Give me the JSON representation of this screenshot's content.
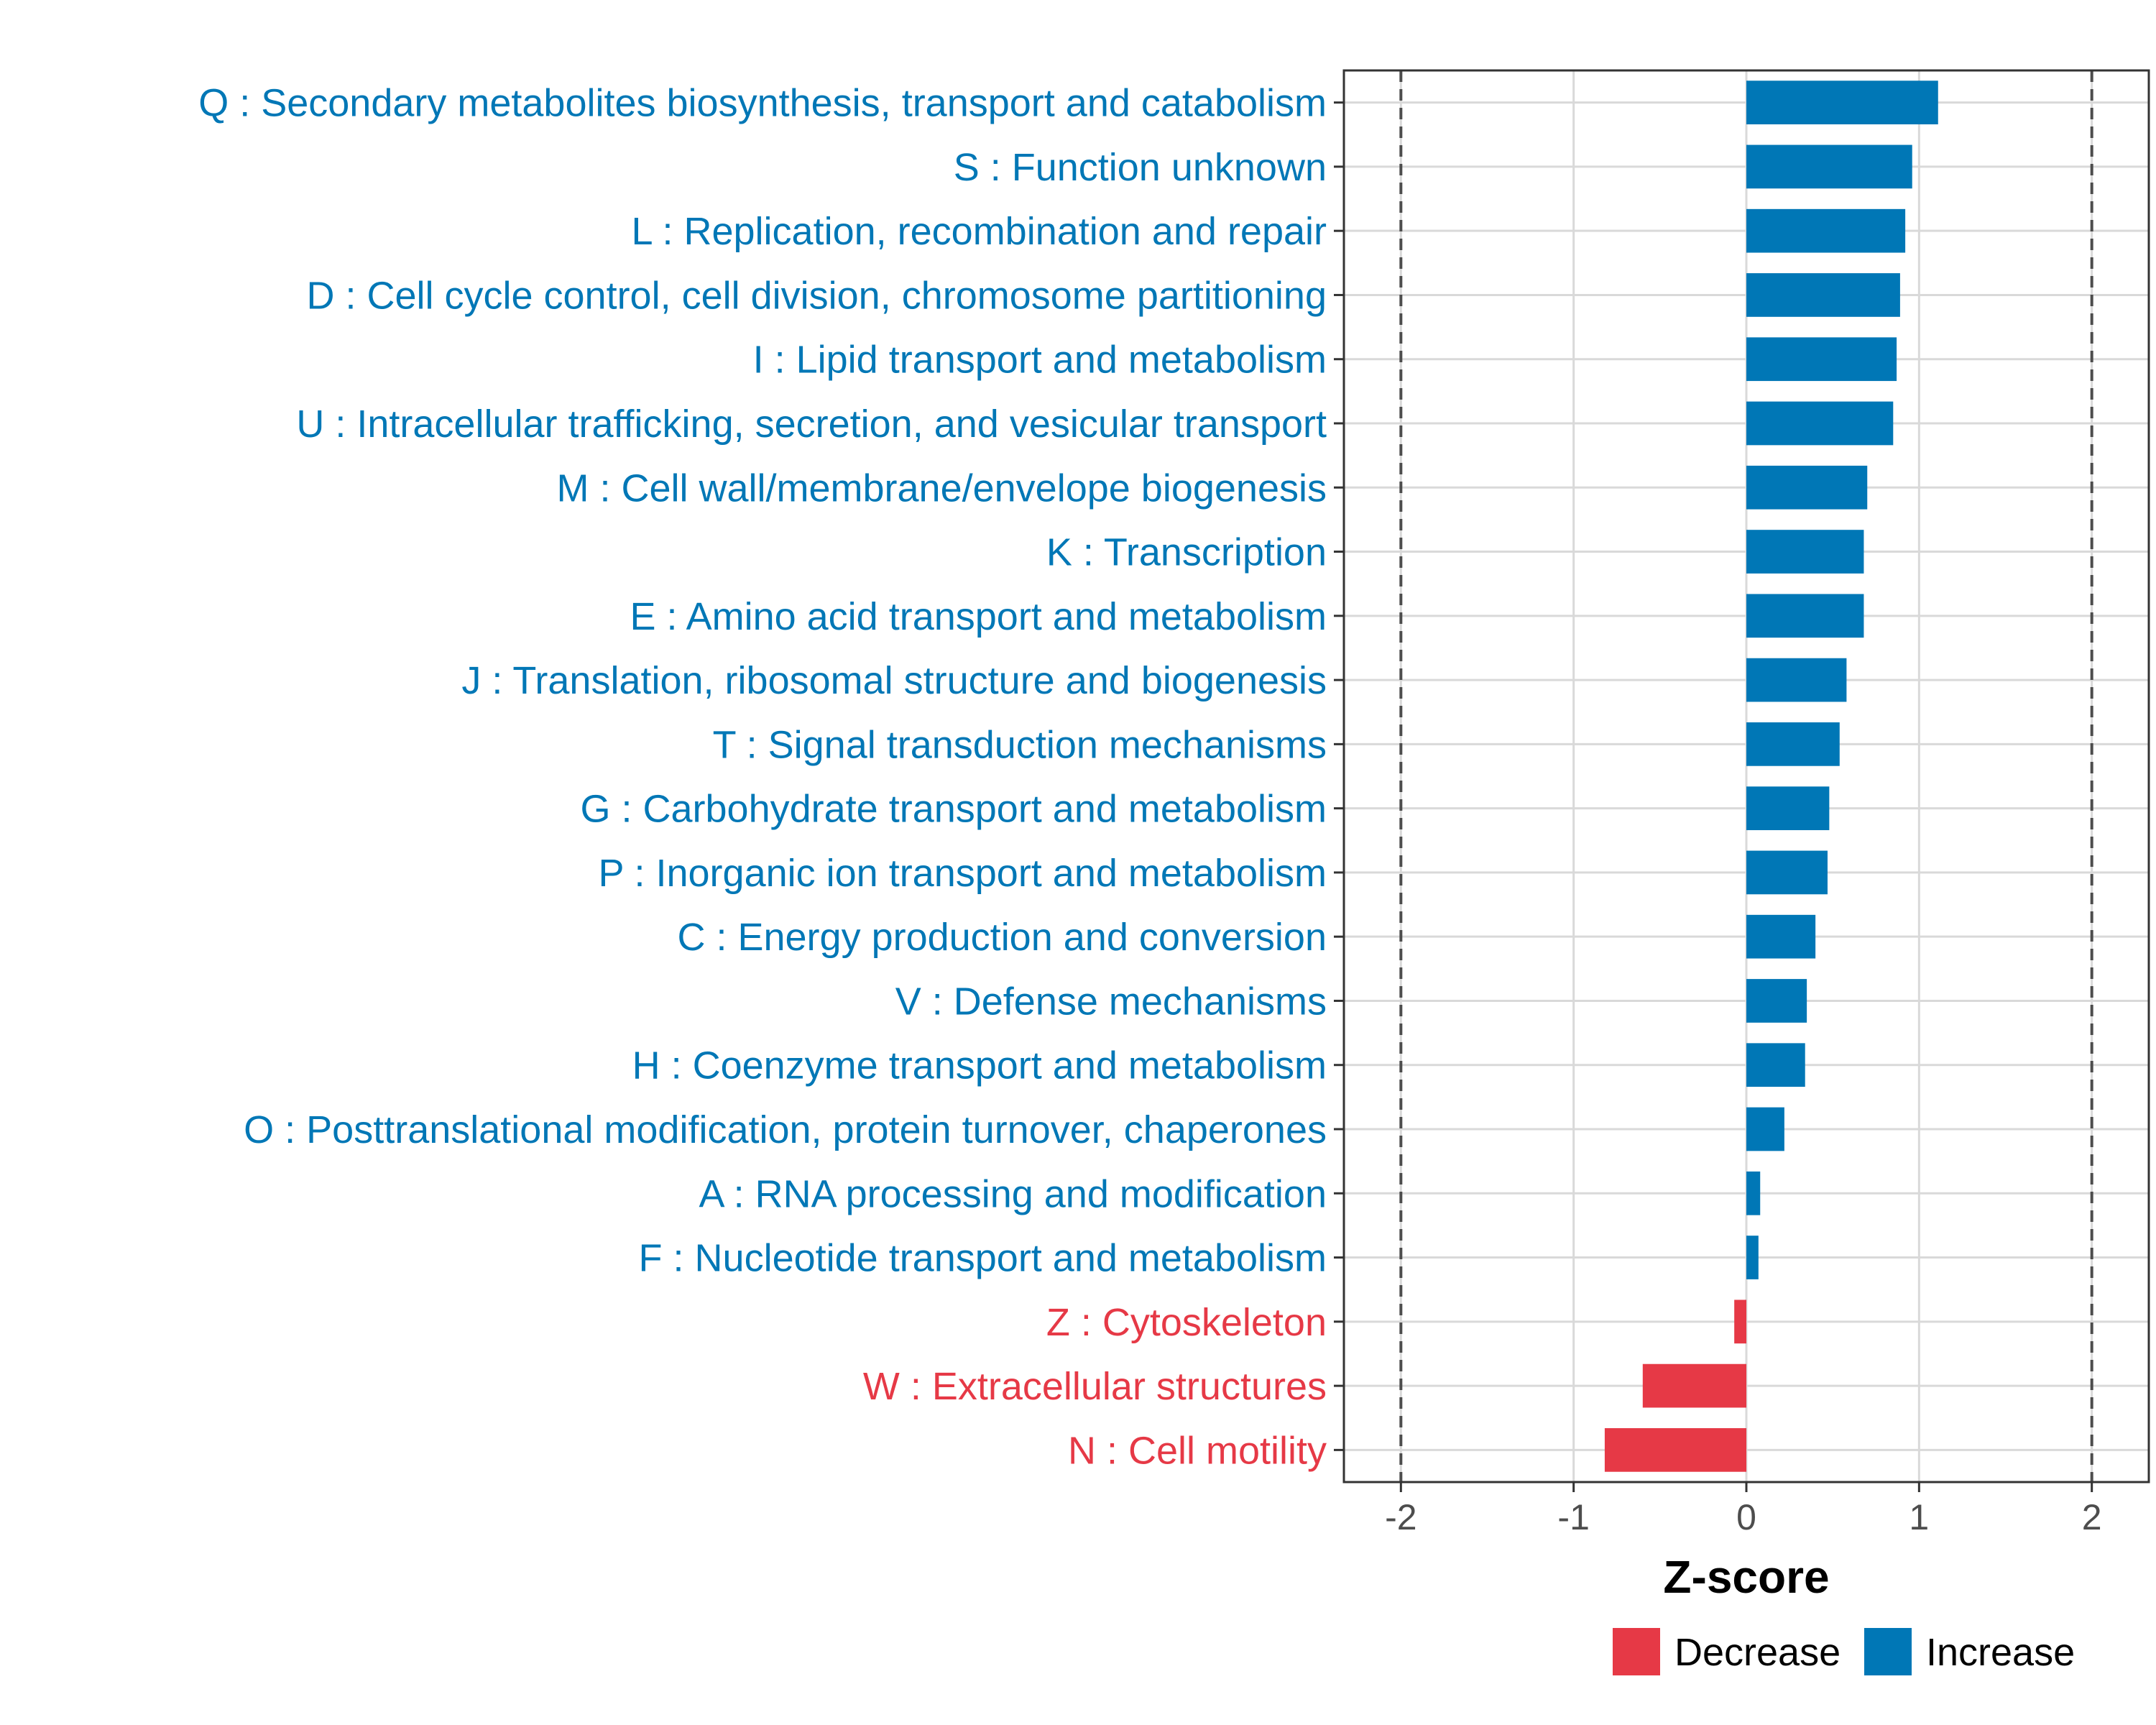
{
  "chart_data": {
    "type": "bar",
    "orientation": "horizontal",
    "xlabel": "Z-score",
    "xlim": [
      -2.33,
      2.33
    ],
    "xticks": [
      -2,
      -1,
      0,
      1,
      2
    ],
    "xtick_labels": [
      "-2",
      "-1",
      "0",
      "1",
      "2"
    ],
    "reference_lines": [
      -2,
      2
    ],
    "categories": [
      "Q : Secondary metabolites biosynthesis, transport and catabolism",
      "S : Function unknown",
      "L : Replication, recombination and repair",
      "D : Cell cycle control, cell division, chromosome partitioning",
      "I : Lipid transport and metabolism",
      "U : Intracellular trafficking, secretion, and vesicular transport",
      "M : Cell wall/membrane/envelope biogenesis",
      "K : Transcription",
      "E : Amino acid transport and metabolism",
      "J : Translation, ribosomal structure and biogenesis",
      "T : Signal transduction mechanisms",
      "G : Carbohydrate transport and metabolism",
      "P : Inorganic ion transport and metabolism",
      "C : Energy production and conversion",
      "V : Defense mechanisms",
      "H : Coenzyme transport and metabolism",
      "O : Posttranslational modification, protein turnover, chaperones",
      "A : RNA processing and modification",
      "F : Nucleotide transport and metabolism",
      "Z : Cytoskeleton",
      "W : Extracellular structures",
      "N : Cell motility"
    ],
    "values": [
      1.11,
      0.96,
      0.92,
      0.89,
      0.87,
      0.85,
      0.7,
      0.68,
      0.68,
      0.58,
      0.54,
      0.48,
      0.47,
      0.4,
      0.35,
      0.34,
      0.22,
      0.08,
      0.07,
      -0.07,
      -0.6,
      -0.82
    ],
    "legend": {
      "position": "bottom",
      "items": [
        {
          "label": "Decrease",
          "color": "#e63946"
        },
        {
          "label": "Increase",
          "color": "#0077b6"
        }
      ]
    },
    "colors": {
      "increase": "#0077b6",
      "decrease": "#e63946",
      "grid": "#d9d9d9",
      "reference_line": "#4d4d4d",
      "panel_border": "#333333",
      "tick_text": "#4d4d4d"
    }
  }
}
